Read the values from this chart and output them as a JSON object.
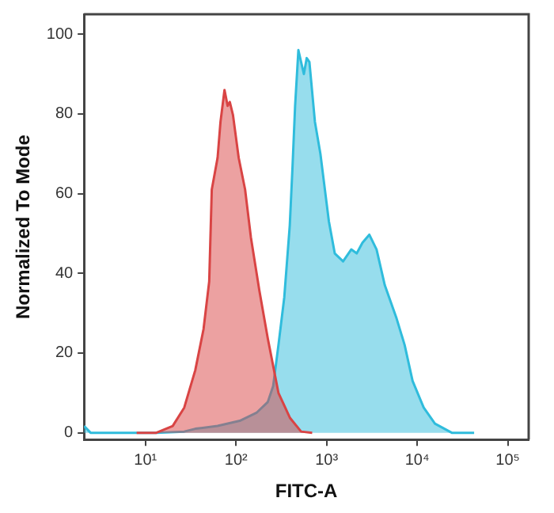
{
  "chart_data": {
    "type": "area",
    "xlabel": "FITC-A",
    "ylabel": "Normalized To Mode",
    "log": "x",
    "xlim": [
      2.1,
      170000
    ],
    "xticks": [
      {
        "value": 10,
        "label": "10¹"
      },
      {
        "value": 100,
        "label": "10²"
      },
      {
        "value": 1000,
        "label": "10³"
      },
      {
        "value": 10000,
        "label": "10⁴"
      },
      {
        "value": 100000,
        "label": "10⁵"
      }
    ],
    "ylim": [
      -1.7,
      105
    ],
    "yticks": [
      0,
      20,
      40,
      60,
      80,
      100
    ],
    "grid": false,
    "legend": false,
    "marker": "none",
    "line_style": "solid",
    "series": [
      {
        "color": "#d94444",
        "x": [
          8.0,
          13.2,
          20,
          26.8,
          35.5,
          43.8,
          50.6,
          54,
          62.6,
          67.4,
          74.6,
          80.8,
          85.4,
          92.6,
          107,
          126,
          146,
          181,
          224,
          294,
          395,
          523,
          693
        ],
        "values": [
          0,
          0,
          1.7,
          6.3,
          15.7,
          26,
          38,
          61,
          69,
          78,
          86,
          82,
          83,
          79.7,
          69,
          61,
          49,
          35.7,
          23.7,
          10,
          3.7,
          0.3,
          0
        ]
      },
      {
        "color": "#2fbcdc",
        "x": [
          2.1,
          2.48,
          5.64,
          13.2,
          26.8,
          35.5,
          62.6,
          110,
          168,
          224,
          257,
          294,
          341,
          392,
          419,
          449,
          488,
          523,
          561,
          603,
          646,
          743,
          854,
          1060,
          1230,
          1520,
          1870,
          2150,
          2490,
          2960,
          3560,
          4390,
          5860,
          7270,
          8890,
          11800,
          15700,
          24100,
          42500
        ],
        "values": [
          1.7,
          0,
          0,
          0,
          0.3,
          1,
          1.7,
          3,
          5,
          7.7,
          11.7,
          22,
          34,
          52,
          66,
          82,
          96,
          93,
          90,
          94,
          93,
          78,
          70,
          53,
          45,
          43,
          46,
          45,
          47.7,
          49.7,
          46,
          37,
          29,
          22,
          13,
          6.3,
          2.3,
          0,
          0
        ]
      }
    ]
  }
}
